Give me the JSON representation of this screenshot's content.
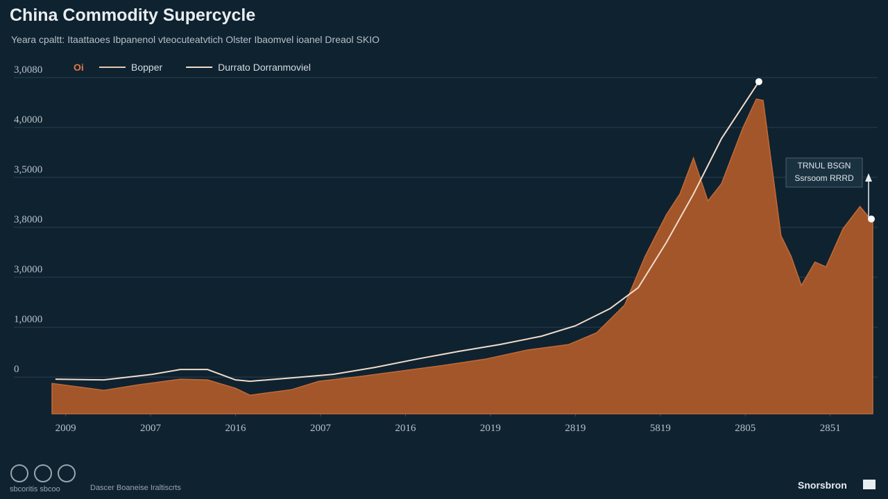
{
  "chart_data": {
    "type": "area",
    "title": "China Commodity Supercycle",
    "subtitle": "Yeara cpaltt: Itaattaoes Ibpanenol vteocuteatvtich Olster Ibaomvel ioanel Dreaol SKIO",
    "legend_title": "Oi",
    "xlim": [
      -0.16,
      9.5
    ],
    "xticks": [
      {
        "value": 0,
        "label": "2009"
      },
      {
        "value": 1,
        "label": "2007"
      },
      {
        "value": 2,
        "label": "2016"
      },
      {
        "value": 3,
        "label": "2007"
      },
      {
        "value": 4,
        "label": "2016"
      },
      {
        "value": 5,
        "label": "2019"
      },
      {
        "value": 6,
        "label": "2819"
      },
      {
        "value": 7,
        "label": "5819"
      },
      {
        "value": 8,
        "label": "2805"
      },
      {
        "value": 9,
        "label": "2851"
      }
    ],
    "ylim": [
      -900,
      6400
    ],
    "yticks": [
      0,
      {
        "value": 1000,
        "label": "1,0000"
      },
      {
        "value": 2000,
        "label": "3,0000"
      },
      {
        "value": 3000,
        "label": "3,8000"
      },
      {
        "value": 4000,
        "label": "3,5000"
      },
      {
        "value": 5000,
        "label": "4,0000"
      },
      {
        "value": 6000,
        "label": "3,0080"
      }
    ],
    "grid": true,
    "series": [
      {
        "name": "Bopper",
        "color": "#a3562a",
        "kind": "area",
        "x": [
          -0.16,
          0.45,
          0.86,
          1.35,
          1.67,
          2.0,
          2.17,
          2.66,
          2.98,
          3.47,
          3.96,
          4.45,
          4.94,
          5.43,
          5.92,
          6.25,
          6.58,
          6.82,
          7.07,
          7.23,
          7.39,
          7.56,
          7.72,
          7.97,
          8.13,
          8.21,
          8.42,
          8.54,
          8.66,
          8.82,
          8.95,
          9.15,
          9.35,
          9.5
        ],
        "values": [
          -292,
          -431,
          -319,
          -208,
          -222,
          -389,
          -528,
          -417,
          -250,
          -153,
          -42,
          69,
          194,
          375,
          486,
          722,
          1278,
          2250,
          3083,
          3500,
          4222,
          3361,
          3708,
          4819,
          5403,
          5375,
          2667,
          2250,
          1667,
          2139,
          2042,
          2806,
          3250,
          2944
        ]
      },
      {
        "name": "Durrato Dorranmoviel",
        "color": "#f2dccb",
        "kind": "line",
        "x": [
          -0.12,
          0.45,
          1.02,
          1.35,
          1.67,
          2.0,
          2.17,
          2.66,
          3.15,
          3.64,
          4.13,
          4.62,
          5.11,
          5.6,
          6.0,
          6.41,
          6.74,
          7.07,
          7.39,
          7.72,
          8.16
        ],
        "values": [
          -208,
          -222,
          -111,
          -14,
          -14,
          -222,
          -250,
          -181,
          -111,
          28,
          194,
          347,
          486,
          653,
          861,
          1208,
          1625,
          2528,
          3500,
          4611,
          5750
        ]
      }
    ],
    "annotation": [
      "TRNUL BSGN",
      "Ssrsoom RRRD"
    ],
    "footer": {
      "left_small": "sbcoritis sbcoo",
      "left_text": "Dascer Boaneise Iraltiscrts",
      "brand": "Snorsbron"
    }
  }
}
